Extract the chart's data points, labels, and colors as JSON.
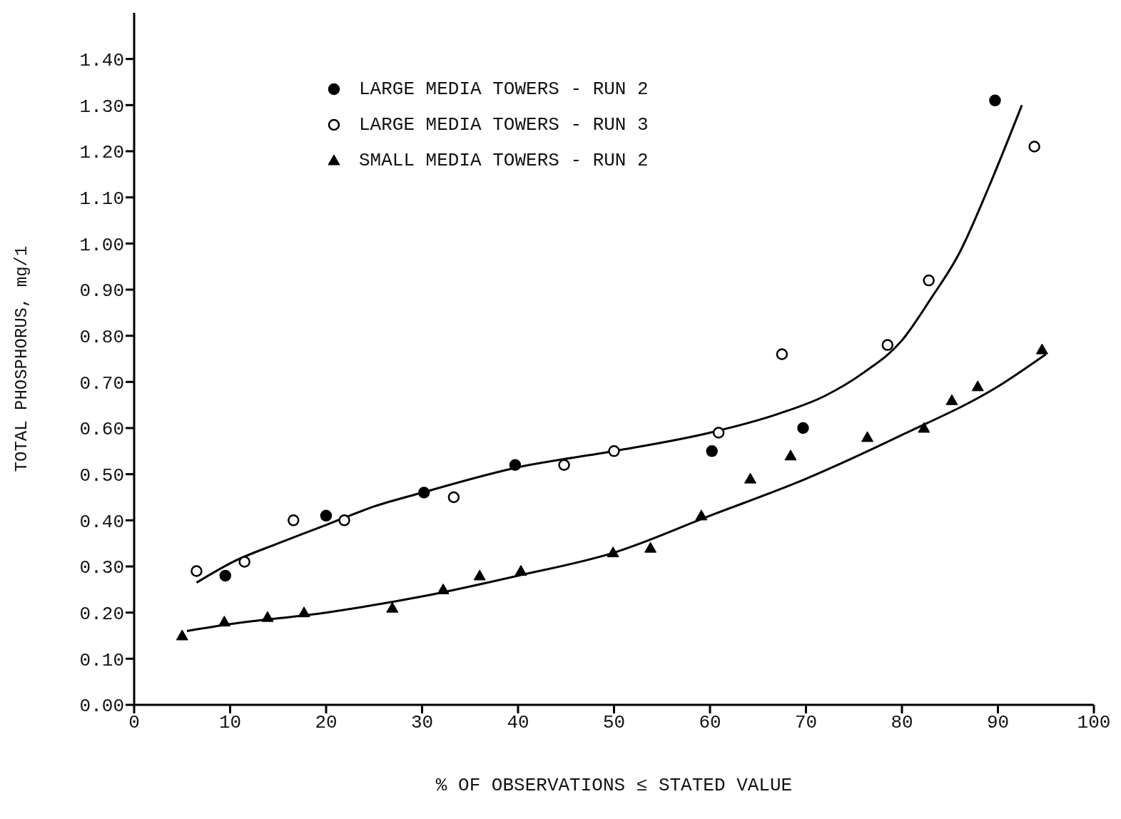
{
  "chart_data": {
    "type": "scatter",
    "xlabel": "% OF OBSERVATIONS ≤ STATED VALUE",
    "ylabel": "TOTAL PHOSPHORUS, mg/1",
    "xlim": [
      0,
      100
    ],
    "xticks": [
      0,
      10,
      20,
      30,
      40,
      50,
      60,
      70,
      80,
      90,
      100
    ],
    "ylim": [
      0,
      1.5
    ],
    "yticks": [
      {
        "value": 0,
        "label": "0.00"
      },
      {
        "value": 0.1,
        "label": "0.10"
      },
      {
        "value": 0.2,
        "label": "0.20"
      },
      {
        "value": 0.3,
        "label": "0.30"
      },
      {
        "value": 0.4,
        "label": "0.40"
      },
      {
        "value": 0.5,
        "label": "0.50"
      },
      {
        "value": 0.6,
        "label": "0.60"
      },
      {
        "value": 0.7,
        "label": "0.70"
      },
      {
        "value": 0.8,
        "label": "0.80"
      },
      {
        "value": 0.9,
        "label": "0.90"
      },
      {
        "value": 1.0,
        "label": "1.00"
      },
      {
        "value": 1.1,
        "label": "1.10"
      },
      {
        "value": 1.2,
        "label": "1.20"
      },
      {
        "value": 1.3,
        "label": "1.30"
      },
      {
        "value": 1.4,
        "label": "1.40"
      }
    ],
    "grid": false,
    "legend": "top left",
    "series": [
      {
        "name": "LARGE MEDIA TOWERS - RUN 2",
        "color": "#000000",
        "marker": "circle",
        "x": [
          9.5,
          20.0,
          30.2,
          39.7,
          60.2,
          69.7,
          89.7
        ],
        "values": [
          0.28,
          0.41,
          0.46,
          0.52,
          0.55,
          0.6,
          1.31
        ]
      },
      {
        "name": "LARGE MEDIA TOWERS - RUN 3",
        "color": "#000000",
        "marker": "circle",
        "x": [
          6.5,
          11.5,
          16.6,
          21.9,
          33.3,
          44.8,
          50.0,
          60.9,
          67.5,
          78.5,
          82.8,
          93.8
        ],
        "values": [
          0.29,
          0.31,
          0.4,
          0.4,
          0.45,
          0.52,
          0.55,
          0.59,
          0.76,
          0.78,
          0.92,
          1.21
        ]
      },
      {
        "name": "SMALL MEDIA TOWERS - RUN 2",
        "color": "#000000",
        "marker": "triangle",
        "x": [
          5.0,
          9.4,
          13.9,
          17.7,
          26.9,
          32.2,
          36.0,
          40.3,
          49.9,
          53.8,
          59.1,
          64.2,
          68.4,
          76.4,
          82.3,
          85.2,
          87.9,
          94.6
        ],
        "values": [
          0.15,
          0.18,
          0.19,
          0.2,
          0.21,
          0.25,
          0.28,
          0.29,
          0.33,
          0.34,
          0.41,
          0.49,
          0.54,
          0.58,
          0.6,
          0.66,
          0.69,
          0.77
        ]
      },
      {
        "type": "line",
        "color": "#000000",
        "x": [
          6.5,
          10.3,
          15,
          20,
          25,
          30,
          40,
          50,
          60,
          67,
          72,
          76,
          80,
          83,
          86,
          89,
          92.5
        ],
        "values": [
          0.265,
          0.31,
          0.35,
          0.39,
          0.43,
          0.46,
          0.515,
          0.55,
          0.59,
          0.63,
          0.67,
          0.72,
          0.79,
          0.88,
          0.98,
          1.12,
          1.3
        ]
      },
      {
        "type": "line",
        "color": "#000000",
        "x": [
          5.5,
          10,
          20,
          30,
          40,
          50,
          60,
          70,
          80,
          90,
          95
        ],
        "values": [
          0.16,
          0.175,
          0.2,
          0.235,
          0.28,
          0.33,
          0.41,
          0.49,
          0.585,
          0.69,
          0.76
        ]
      }
    ]
  }
}
